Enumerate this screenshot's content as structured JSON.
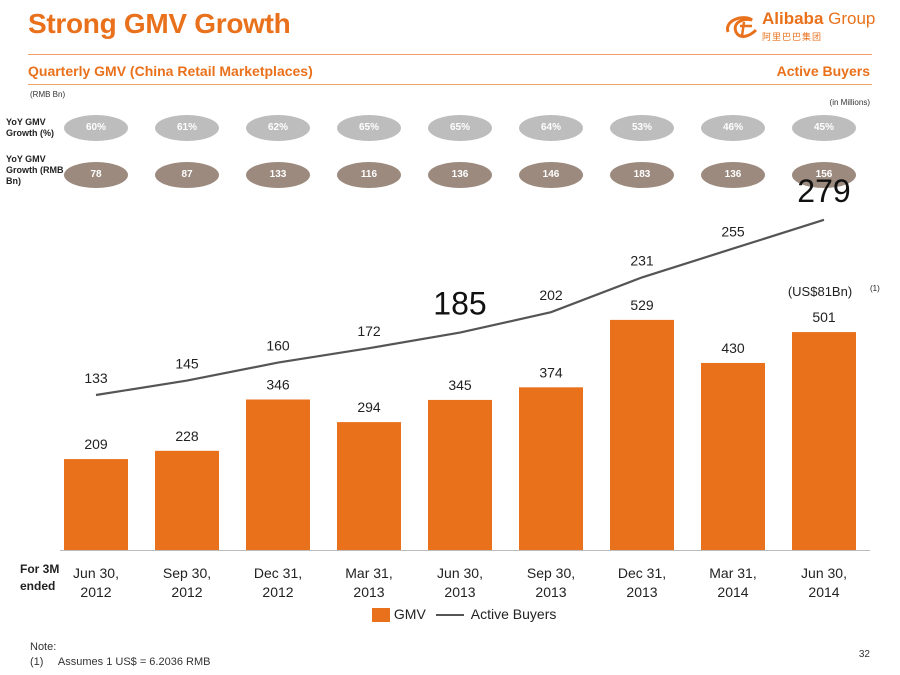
{
  "header": {
    "title": "Strong GMV Growth",
    "logo_text": "Alibaba",
    "logo_group": "Group",
    "logo_sub": "阿里巴巴集团",
    "subtitle": "Quarterly GMV (China Retail Marketplaces)",
    "right_title": "Active Buyers",
    "unit_left": "(RMB Bn)",
    "unit_right": "(in Millions)"
  },
  "rows": {
    "growth_pct_label": "YoY GMV Growth (%)",
    "growth_pct": [
      "60%",
      "61%",
      "62%",
      "65%",
      "65%",
      "64%",
      "53%",
      "46%",
      "45%"
    ],
    "growth_rmb_label": "YoY GMV Growth (RMB Bn)",
    "growth_rmb": [
      "78",
      "87",
      "133",
      "116",
      "136",
      "146",
      "183",
      "136",
      "156"
    ]
  },
  "footer": {
    "period_label": "For 3M ended",
    "note_title": "Note:",
    "note_id": "(1)",
    "note_text": "Assumes 1 US$ = 6.2036 RMB",
    "page_number": "32"
  },
  "colors": {
    "brand": "#e9711c",
    "bar": "#e9711c",
    "line": "#555555",
    "pill_gray": "#bdbdbd",
    "pill_brown": "#9c8a7e"
  },
  "chart_data": {
    "type": "bar",
    "categories": [
      [
        "Jun 30,",
        "2012"
      ],
      [
        "Sep 30,",
        "2012"
      ],
      [
        "Dec 31,",
        "2012"
      ],
      [
        "Mar 31,",
        "2013"
      ],
      [
        "Jun 30,",
        "2013"
      ],
      [
        "Sep 30,",
        "2013"
      ],
      [
        "Dec 31,",
        "2013"
      ],
      [
        "Mar 31,",
        "2014"
      ],
      [
        "Jun 30,",
        "2014"
      ]
    ],
    "series": [
      {
        "name": "GMV",
        "type": "bar",
        "values": [
          209,
          228,
          346,
          294,
          345,
          374,
          529,
          430,
          501
        ]
      },
      {
        "name": "Active Buyers",
        "type": "line",
        "values": [
          133,
          145,
          160,
          172,
          185,
          202,
          231,
          255,
          279
        ]
      }
    ],
    "highlighted_line_labels": [
      4,
      8
    ],
    "annotation": {
      "category_index": 8,
      "text": "(US$81Bn)",
      "footnote_mark": "(1)"
    },
    "legend": "bottom-center",
    "grid": false
  }
}
